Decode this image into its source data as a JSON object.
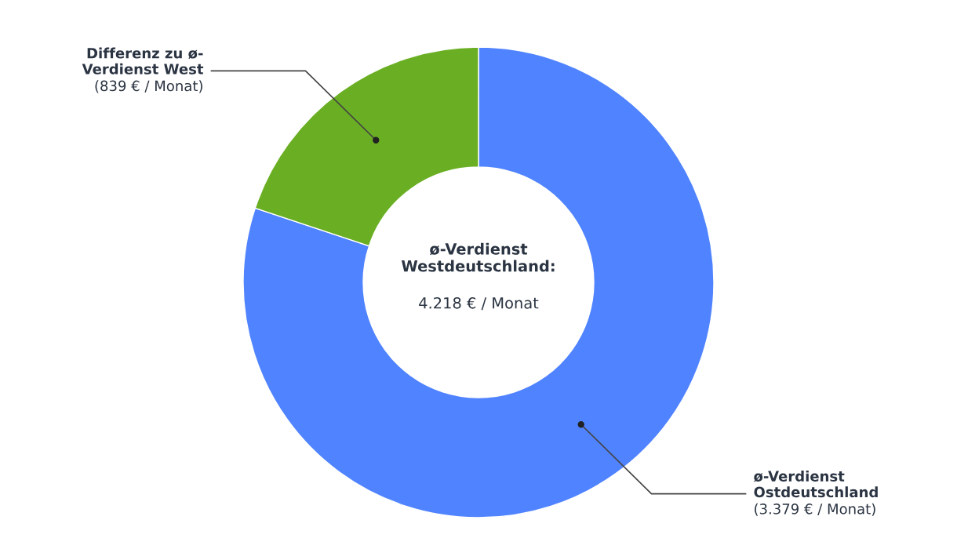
{
  "chart_data": {
    "type": "donut",
    "categories": [
      "ø-Verdienst\nOstdeutschland",
      "Differenz zu ø-\nVerdienst West"
    ],
    "values": [
      3379,
      839
    ],
    "value_labels": [
      "(3.379 € / Monat)",
      "(839 € / Monat)"
    ],
    "colors": [
      "#5083ff",
      "#6aaf23"
    ],
    "annotations": [
      "ø-Verdienst\nWestdeutschland:",
      "4.218 € / Monat"
    ],
    "legend": false
  }
}
